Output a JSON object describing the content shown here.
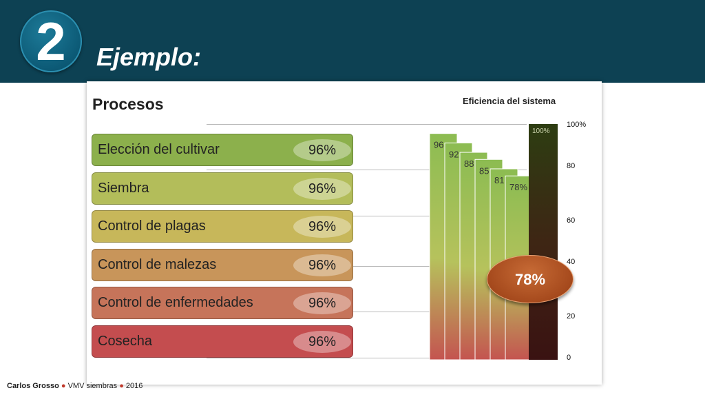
{
  "header": {
    "number": "2",
    "title": "Ejemplo:"
  },
  "procesos_title": "Procesos",
  "processes": [
    {
      "label": "Elección del cultivar",
      "value": "96%",
      "color": "#8cb04c"
    },
    {
      "label": "Siembra",
      "value": "96%",
      "color": "#b3bd5a"
    },
    {
      "label": "Control de plagas",
      "value": "96%",
      "color": "#c7b75a"
    },
    {
      "label": "Control de malezas",
      "value": "96%",
      "color": "#c8955a"
    },
    {
      "label": "Control de enfermedades",
      "value": "96%",
      "color": "#c6745a"
    },
    {
      "label": "Cosecha",
      "value": "96%",
      "color": "#c44d4f"
    }
  ],
  "chart_data": {
    "type": "bar",
    "title": "Eficiencia del sistema",
    "axis_ticks": [
      "100%",
      "80",
      "60",
      "40",
      "20",
      "0"
    ],
    "cascade_bars": [
      {
        "label": "96",
        "value": 96
      },
      {
        "label": "92",
        "value": 92
      },
      {
        "label": "88",
        "value": 88
      },
      {
        "label": "85",
        "value": 85
      },
      {
        "label": "81",
        "value": 81
      },
      {
        "label": "78%",
        "value": 78
      }
    ],
    "reference_bar": {
      "label": "100%",
      "value": 100
    },
    "ylim": [
      0,
      100
    ],
    "result": "78%"
  },
  "footer": {
    "author": "Carlos Grosso",
    "source": "VMV siembras",
    "year": "2016"
  }
}
